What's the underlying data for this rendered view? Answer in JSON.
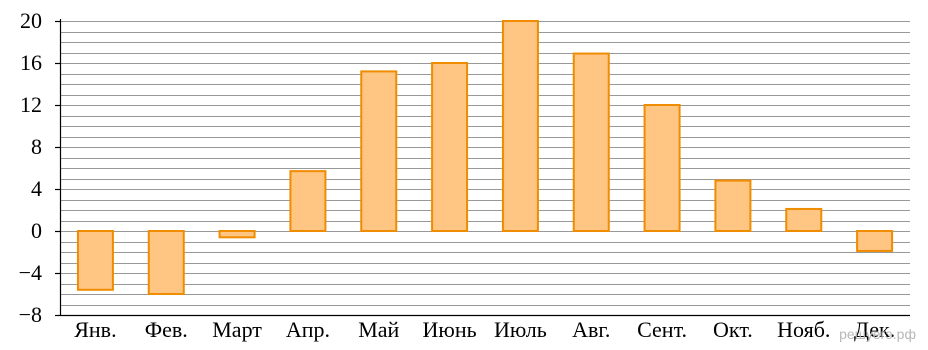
{
  "chart_data": {
    "type": "bar",
    "categories": [
      "Янв.",
      "Фев.",
      "Март",
      "Апр.",
      "Май",
      "Июнь",
      "Июль",
      "Авг.",
      "Сент.",
      "Окт.",
      "Нояб.",
      "Дек."
    ],
    "values": [
      -5.6,
      -6.0,
      -0.6,
      5.7,
      15.2,
      16.0,
      20.0,
      16.9,
      12.0,
      4.8,
      2.1,
      -1.9
    ],
    "ylim": [
      -8,
      20
    ],
    "y_ticks": [
      -8,
      -4,
      0,
      4,
      8,
      12,
      16,
      20
    ],
    "y_tick_labels": [
      "−8",
      "−4",
      "0",
      "4",
      "8",
      "12",
      "16",
      "20"
    ],
    "minor_grid_step": 1,
    "grid": true,
    "legend": "none",
    "colors": {
      "bar_fill": "#ffc583",
      "bar_stroke": "#f08c00",
      "grid": "#999999",
      "axis": "#000000"
    }
  },
  "watermark": {
    "text": "решуегэ.рф"
  }
}
